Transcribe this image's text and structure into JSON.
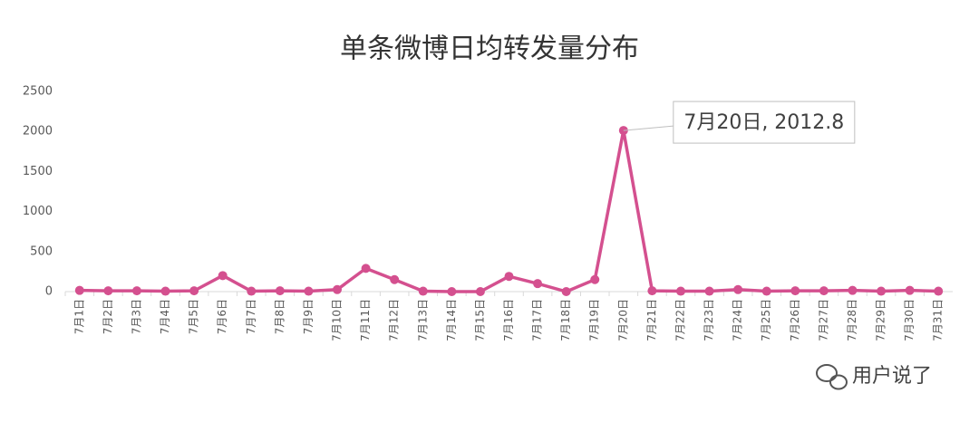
{
  "chart_data": {
    "type": "line",
    "title": "单条微博日均转发量分布",
    "categories": [
      "7月1日",
      "7月2日",
      "7月3日",
      "7月4日",
      "7月5日",
      "7月6日",
      "7月7日",
      "7月8日",
      "7月9日",
      "7月10日",
      "7月11日",
      "7月12日",
      "7月13日",
      "7月14日",
      "7月15日",
      "7月16日",
      "7月17日",
      "7月18日",
      "7月19日",
      "7月20日",
      "7月21日",
      "7月22日",
      "7月23日",
      "7月24日",
      "7月25日",
      "7月26日",
      "7月27日",
      "7月28日",
      "7月29日",
      "7月30日",
      "7月31日"
    ],
    "values": [
      15,
      10,
      10,
      5,
      10,
      200,
      5,
      10,
      5,
      25,
      290,
      150,
      5,
      0,
      0,
      190,
      100,
      0,
      150,
      2012.8,
      10,
      5,
      5,
      25,
      5,
      10,
      10,
      15,
      5,
      15,
      5
    ],
    "value_labels": [
      null,
      null,
      null,
      null,
      null,
      null,
      null,
      null,
      null,
      null,
      null,
      null,
      null,
      null,
      null,
      null,
      null,
      null,
      null,
      "7月20日, 2012.8",
      null,
      null,
      null,
      null,
      null,
      null,
      null,
      null,
      null,
      null,
      null
    ],
    "color": "#d4508f",
    "ylim": [
      0,
      2500
    ],
    "yticks": [
      0,
      500,
      1000,
      1500,
      2000,
      2500
    ],
    "grid": false,
    "watermark": "用户说了"
  }
}
